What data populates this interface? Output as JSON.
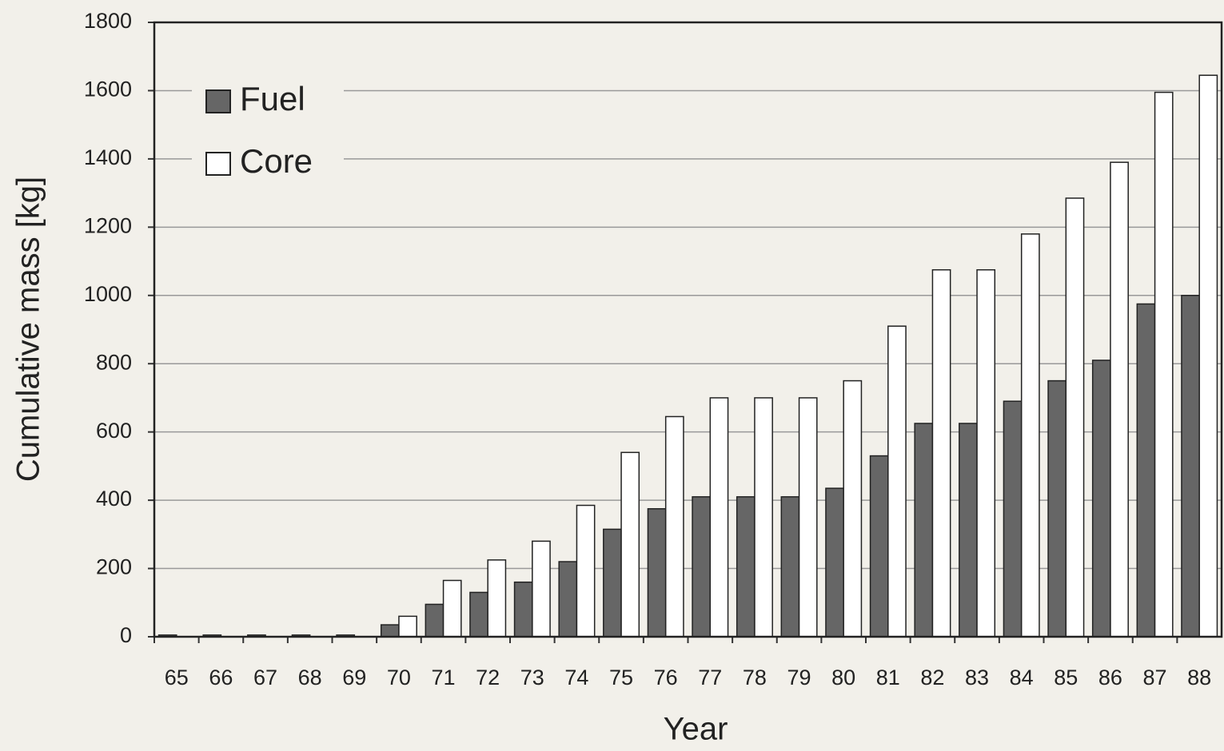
{
  "chart_data": {
    "type": "bar",
    "x_label": "Year",
    "y_label": "Cumulative mass [kg]",
    "categories": [
      "65",
      "66",
      "67",
      "68",
      "69",
      "70",
      "71",
      "72",
      "73",
      "74",
      "75",
      "76",
      "77",
      "78",
      "79",
      "80",
      "81",
      "82",
      "83",
      "84",
      "85",
      "86",
      "87",
      "88"
    ],
    "series": [
      {
        "name": "Fuel",
        "color": "#666666",
        "values": [
          5,
          5,
          5,
          5,
          5,
          35,
          95,
          130,
          160,
          220,
          315,
          375,
          410,
          410,
          410,
          435,
          530,
          625,
          625,
          690,
          750,
          810,
          975,
          1000
        ]
      },
      {
        "name": "Core",
        "color": "#ffffff",
        "values": [
          0,
          0,
          0,
          0,
          0,
          60,
          165,
          225,
          280,
          385,
          540,
          645,
          700,
          700,
          700,
          750,
          910,
          1075,
          1075,
          1180,
          1285,
          1390,
          1595,
          1645
        ]
      }
    ],
    "ylim": [
      0,
      1800
    ],
    "yticks": [
      0,
      200,
      400,
      600,
      800,
      1000,
      1200,
      1400,
      1600,
      1800
    ],
    "grid": true,
    "legend": "upper left"
  }
}
